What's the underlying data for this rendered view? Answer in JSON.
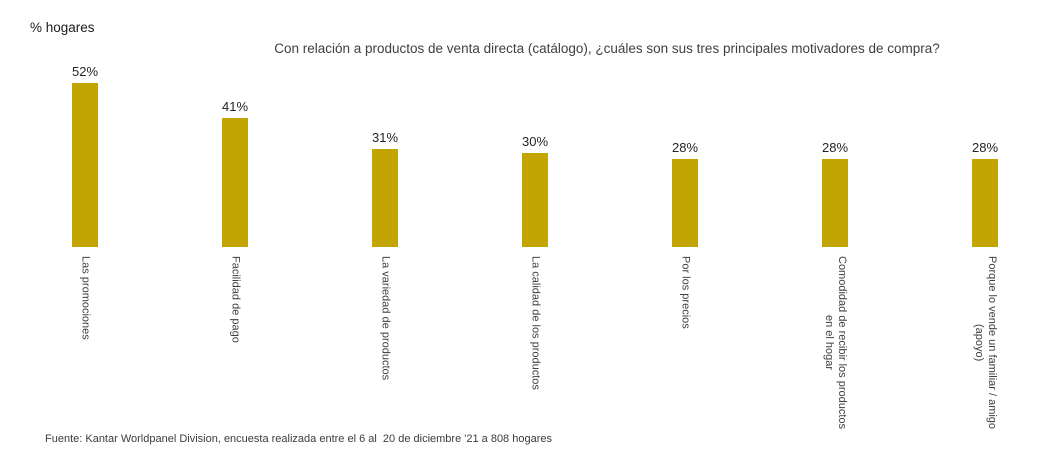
{
  "page": {
    "background_color": "#ffffff",
    "text_color": "#3f3f3f"
  },
  "axis_title": "% hogares",
  "title": "Con relación a productos de venta directa (catálogo), ¿cuáles son sus tres principales motivadores de compra?",
  "source_note": "Fuente: Kantar Worldpanel Division, encuesta realizada entre el 6 al  20 de diciembre '21 a 808 hogares",
  "chart_data": {
    "type": "bar",
    "title": "Con relación a productos de venta directa (catálogo), ¿cuáles son sus tres principales motivadores de compra?",
    "xlabel": "",
    "ylabel": "% hogares",
    "categories": [
      "Las promociones",
      "Facilidad de pago",
      "La variedad de productos",
      "La calidad de los productos",
      "Por los precios",
      "Comodidad de recibir los productos en el hogar",
      "Porque lo vende un familiar / amigo (apoyo)"
    ],
    "category_lines": [
      [
        "Las promociones"
      ],
      [
        "Facilidad de pago"
      ],
      [
        "La variedad de productos"
      ],
      [
        "La calidad de los productos"
      ],
      [
        "Por los precios"
      ],
      [
        "Comodidad de recibir los productos",
        "en el hogar"
      ],
      [
        "Porque lo vende un familiar / amigo",
        "(apoyo)"
      ]
    ],
    "values": [
      52,
      41,
      31,
      30,
      28,
      28,
      28
    ],
    "data_labels": [
      "52%",
      "41%",
      "31%",
      "30%",
      "28%",
      "28%",
      "28%"
    ],
    "ylim": [
      0,
      55
    ],
    "grid": false,
    "legend": "none",
    "axis_lines": "hidden",
    "bar_color": "#C2A502",
    "category_label_rotation": "vertical"
  }
}
